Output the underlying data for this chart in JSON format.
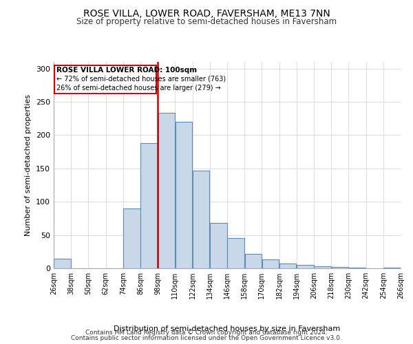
{
  "title": "ROSE VILLA, LOWER ROAD, FAVERSHAM, ME13 7NN",
  "subtitle": "Size of property relative to semi-detached houses in Faversham",
  "xlabel": "Distribution of semi-detached houses by size in Faversham",
  "ylabel": "Number of semi-detached properties",
  "footer_lines": [
    "Contains HM Land Registry data © Crown copyright and database right 2024.",
    "Contains public sector information licensed under the Open Government Licence v3.0."
  ],
  "annotation_title": "ROSE VILLA LOWER ROAD: 100sqm",
  "annotation_line1": "← 72% of semi-detached houses are smaller (763)",
  "annotation_line2": "26% of semi-detached houses are larger (279) →",
  "bins": [
    26,
    38,
    50,
    62,
    74,
    86,
    98,
    110,
    122,
    134,
    146,
    158,
    170,
    182,
    194,
    206,
    218,
    230,
    242,
    254,
    266
  ],
  "counts": [
    14,
    0,
    0,
    0,
    90,
    188,
    234,
    220,
    147,
    68,
    45,
    22,
    13,
    7,
    5,
    3,
    2,
    1,
    0,
    1
  ],
  "bar_color": "#c8d8e8",
  "bar_edge_color": "#5b8db8",
  "red_line_x": 98,
  "red_line_color": "#cc0000",
  "annotation_box_edge": "#cc0000",
  "annotation_box_facecolor": "#ffffff",
  "grid_color": "#dddddd",
  "ylim": [
    0,
    310
  ],
  "yticks": [
    0,
    50,
    100,
    150,
    200,
    250,
    300
  ]
}
